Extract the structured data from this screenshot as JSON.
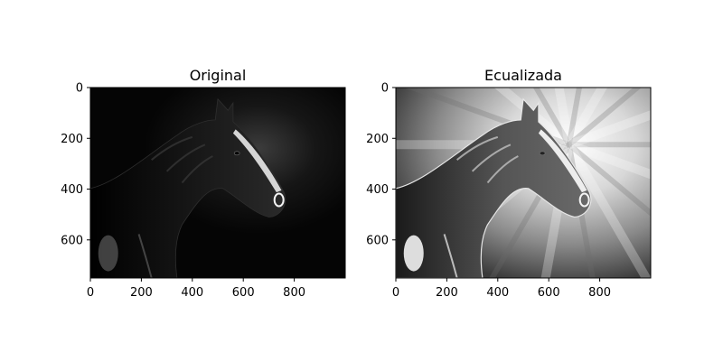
{
  "panels": [
    {
      "title": "Original",
      "variant": "original",
      "x_ticks": [
        "0",
        "200",
        "400",
        "600",
        "800"
      ],
      "y_ticks": [
        "0",
        "200",
        "400",
        "600"
      ],
      "x_tick_values": [
        0,
        200,
        400,
        600,
        800
      ],
      "y_tick_values": [
        0,
        200,
        400,
        600
      ],
      "image_width": 1000,
      "image_height": 750
    },
    {
      "title": "Ecualizada",
      "variant": "equalized",
      "x_ticks": [
        "0",
        "200",
        "400",
        "600",
        "800"
      ],
      "y_ticks": [
        "0",
        "200",
        "400",
        "600"
      ],
      "x_tick_values": [
        0,
        200,
        400,
        600,
        800
      ],
      "y_tick_values": [
        0,
        200,
        400,
        600
      ],
      "image_width": 1000,
      "image_height": 750
    }
  ],
  "colors": {
    "original_background": "#050505",
    "equalized_background": "#9a9a9a",
    "horse_original": "#181818",
    "horse_equalized": "#3a3a3a",
    "highlight": "#f4f4f4"
  }
}
